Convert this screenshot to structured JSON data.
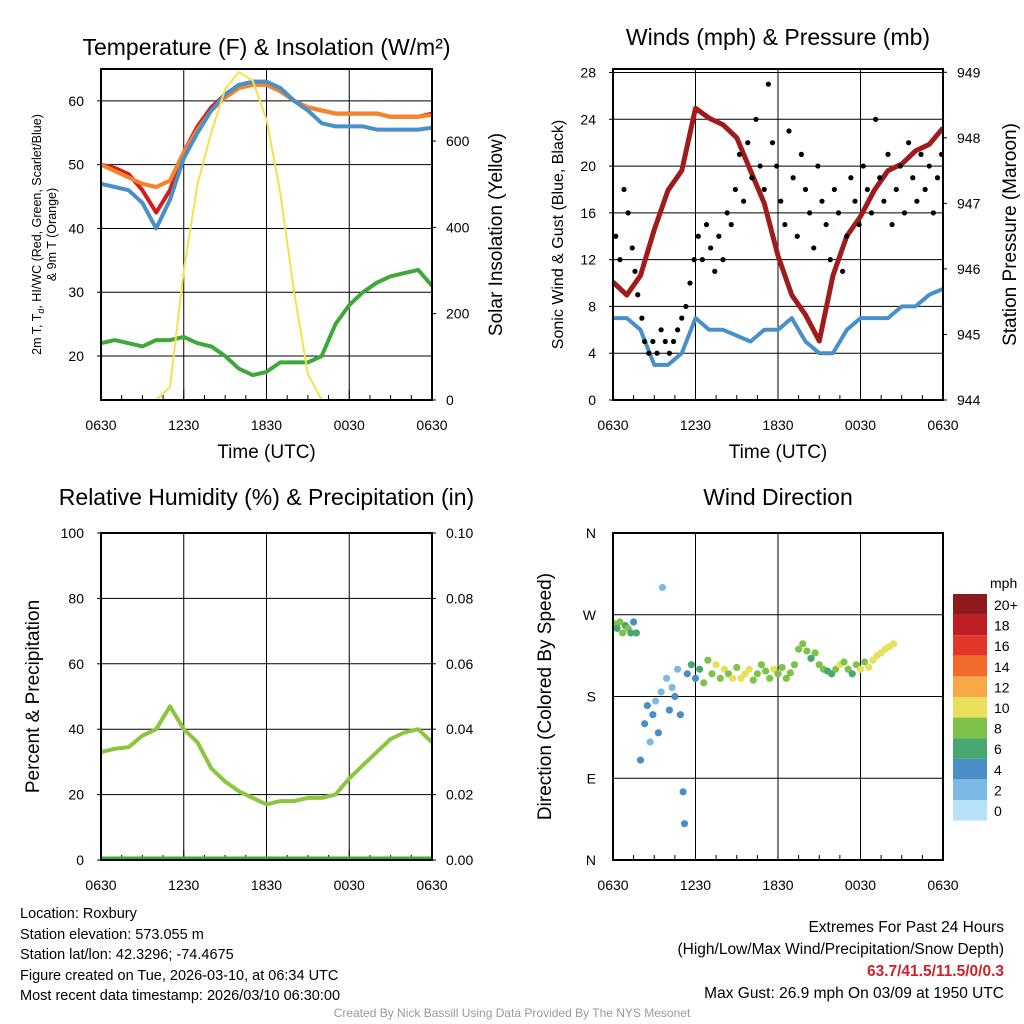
{
  "chart_data": [
    {
      "type": "line",
      "title": "Temperature (F) & Insolation (W/m²)",
      "xlabel": "Time (UTC)",
      "ylabel": "2m T, Td, HI/WC (Red, Green, Scarlet/Blue) & 9m T (Orange)",
      "ylabel_right": "Solar Insolation (Yellow)",
      "xticks": [
        "0630",
        "1230",
        "1830",
        "0030",
        "0630"
      ],
      "ylim": [
        13.1,
        65
      ],
      "yticks": [
        20,
        30,
        40,
        50,
        60
      ],
      "ylim_right": [
        0,
        767
      ],
      "yticks_right": [
        0,
        200,
        400,
        600
      ],
      "series": [
        {
          "name": "2m T",
          "color": "#d7191c",
          "axis": "left",
          "values": [
            50,
            49.5,
            48.5,
            46,
            42.5,
            46,
            52,
            56,
            59,
            61,
            62.5,
            63,
            63,
            62,
            60,
            59,
            58.5,
            58,
            58,
            58,
            58,
            57.5,
            57.5,
            57.5,
            58
          ]
        },
        {
          "name": "9m T",
          "color": "#f6822a",
          "axis": "left",
          "values": [
            50,
            49,
            48,
            47,
            46.5,
            47.5,
            52,
            55.5,
            58.5,
            60.5,
            62,
            62.5,
            62.5,
            61.5,
            60,
            59,
            58.5,
            58,
            58,
            58,
            58,
            57.5,
            57.5,
            57.5,
            57.8
          ]
        },
        {
          "name": "HI/WC",
          "color": "#4a90c8",
          "axis": "left",
          "values": [
            47,
            46.5,
            46,
            44,
            40,
            44.5,
            51,
            55,
            58.5,
            61,
            62.5,
            63,
            63,
            62,
            60,
            58.5,
            56.5,
            56,
            56,
            56,
            55.5,
            55.5,
            55.5,
            55.5,
            55.8
          ]
        },
        {
          "name": "Td",
          "color": "#3fa83a",
          "axis": "left",
          "values": [
            22,
            22.5,
            22,
            21.5,
            22.5,
            22.5,
            23,
            22,
            21.5,
            20,
            18,
            17,
            17.5,
            19,
            19,
            19,
            20,
            25,
            28,
            30,
            31.5,
            32.5,
            33,
            33.5,
            31
          ]
        },
        {
          "name": "Solar Insolation",
          "color": "#f9e04b",
          "axis": "right",
          "values": [
            0,
            0,
            0,
            0,
            0,
            30,
            300,
            500,
            620,
            720,
            760,
            740,
            650,
            480,
            250,
            60,
            0,
            0,
            0,
            0,
            0,
            0,
            0,
            0,
            0
          ]
        }
      ]
    },
    {
      "type": "line",
      "title": "Winds (mph) & Pressure (mb)",
      "xlabel": "Time (UTC)",
      "ylabel": "Sonic Wind & Gust (Blue, Black)",
      "ylabel_right": "Station Pressure (Maroon)",
      "xticks": [
        "0630",
        "1230",
        "1830",
        "0030",
        "0630"
      ],
      "ylim": [
        0,
        28.3
      ],
      "yticks": [
        0,
        4,
        8,
        12,
        16,
        20,
        24,
        28
      ],
      "ylim_right": [
        944,
        949.05
      ],
      "yticks_right": [
        944,
        945,
        946,
        947,
        948,
        949
      ],
      "series": [
        {
          "name": "Sonic Wind",
          "color": "#4a90c8",
          "axis": "left",
          "values": [
            7,
            7,
            6,
            3,
            3,
            4,
            7,
            6,
            6,
            5.5,
            5,
            6,
            6,
            7,
            5,
            4,
            4,
            6,
            7,
            7,
            7,
            8,
            8,
            9,
            9.5
          ]
        },
        {
          "name": "Station Pressure",
          "color": "#a01c1c",
          "axis": "right",
          "values": [
            945.8,
            945.6,
            945.9,
            946.6,
            947.2,
            947.5,
            948.45,
            948.3,
            948.2,
            948.0,
            947.5,
            947.0,
            946.2,
            945.6,
            945.3,
            944.9,
            945.9,
            946.5,
            946.8,
            947.2,
            947.5,
            947.6,
            947.8,
            947.9,
            948.15
          ]
        }
      ],
      "gusts": [
        [
          0.2,
          14
        ],
        [
          0.5,
          12
        ],
        [
          0.8,
          18
        ],
        [
          1.1,
          16
        ],
        [
          1.4,
          13
        ],
        [
          1.6,
          11
        ],
        [
          1.8,
          9
        ],
        [
          2.1,
          7
        ],
        [
          2.3,
          5
        ],
        [
          2.6,
          4
        ],
        [
          2.9,
          5
        ],
        [
          3.2,
          4
        ],
        [
          3.5,
          6
        ],
        [
          3.8,
          5
        ],
        [
          4.1,
          4
        ],
        [
          4.4,
          5
        ],
        [
          4.7,
          6
        ],
        [
          5.0,
          7
        ],
        [
          5.3,
          8
        ],
        [
          5.6,
          10
        ],
        [
          5.9,
          12
        ],
        [
          6.2,
          14
        ],
        [
          6.5,
          12
        ],
        [
          6.8,
          15
        ],
        [
          7.1,
          13
        ],
        [
          7.4,
          11
        ],
        [
          7.7,
          14
        ],
        [
          8.0,
          12
        ],
        [
          8.3,
          16
        ],
        [
          8.6,
          15
        ],
        [
          8.9,
          18
        ],
        [
          9.2,
          21
        ],
        [
          9.5,
          17
        ],
        [
          9.8,
          22
        ],
        [
          10.1,
          19
        ],
        [
          10.4,
          24
        ],
        [
          10.7,
          20
        ],
        [
          11.0,
          18
        ],
        [
          11.3,
          27
        ],
        [
          11.6,
          22
        ],
        [
          11.9,
          20
        ],
        [
          12.2,
          17
        ],
        [
          12.5,
          15
        ],
        [
          12.8,
          23
        ],
        [
          13.1,
          19
        ],
        [
          13.4,
          14
        ],
        [
          13.7,
          21
        ],
        [
          14.0,
          18
        ],
        [
          14.3,
          16
        ],
        [
          14.6,
          13
        ],
        [
          14.9,
          20
        ],
        [
          15.2,
          17
        ],
        [
          15.5,
          15
        ],
        [
          15.8,
          12
        ],
        [
          16.1,
          18
        ],
        [
          16.4,
          16
        ],
        [
          16.7,
          11
        ],
        [
          17.0,
          14
        ],
        [
          17.3,
          19
        ],
        [
          17.6,
          17
        ],
        [
          17.9,
          15
        ],
        [
          18.2,
          20
        ],
        [
          18.5,
          18
        ],
        [
          18.8,
          16
        ],
        [
          19.1,
          24
        ],
        [
          19.4,
          19
        ],
        [
          19.7,
          17
        ],
        [
          20.0,
          21
        ],
        [
          20.3,
          15
        ],
        [
          20.6,
          18
        ],
        [
          20.9,
          20
        ],
        [
          21.2,
          16
        ],
        [
          21.5,
          22
        ],
        [
          21.8,
          19
        ],
        [
          22.1,
          17
        ],
        [
          22.4,
          21
        ],
        [
          22.7,
          18
        ],
        [
          23.0,
          20
        ],
        [
          23.3,
          16
        ],
        [
          23.6,
          19
        ],
        [
          23.9,
          21
        ]
      ]
    },
    {
      "type": "line",
      "title": "Relative Humidity (%) & Precipitation (in)",
      "ylabel": "Percent & Precipitation",
      "xticks": [
        "0630",
        "1230",
        "1830",
        "0030",
        "0630"
      ],
      "ylim": [
        0,
        100
      ],
      "yticks": [
        0,
        20,
        40,
        60,
        80,
        100
      ],
      "ylim_right": [
        0,
        0.1
      ],
      "yticks_right": [
        "0.00",
        "0.02",
        "0.04",
        "0.06",
        "0.08",
        "0.10"
      ],
      "series": [
        {
          "name": "Relative Humidity",
          "color": "#8cc63f",
          "axis": "left",
          "values": [
            33,
            34,
            34.5,
            38,
            40,
            47,
            40,
            36,
            28,
            24,
            21,
            19,
            17,
            18,
            18,
            19,
            19,
            20,
            25,
            29,
            33,
            37,
            39,
            40,
            36
          ]
        },
        {
          "name": "Precipitation",
          "color": "#3fa83a",
          "axis": "right",
          "values": [
            0,
            0,
            0,
            0,
            0,
            0,
            0,
            0,
            0,
            0,
            0,
            0,
            0,
            0,
            0,
            0,
            0,
            0,
            0,
            0,
            0,
            0,
            0,
            0,
            0
          ]
        }
      ]
    },
    {
      "type": "scatter",
      "title": "Wind Direction",
      "ylabel": "Direction (Colored By Speed)",
      "xticks": [
        "0630",
        "1230",
        "1830",
        "0030",
        "0630"
      ],
      "yticks": [
        "N",
        "E",
        "S",
        "W",
        "N"
      ],
      "ylim": [
        0,
        360
      ],
      "legend": {
        "title": "mph",
        "labels": [
          "20+",
          "18",
          "16",
          "14",
          "12",
          "10",
          "8",
          "6",
          "4",
          "2",
          "0"
        ],
        "colors": [
          "#8f1a1d",
          "#bd1e24",
          "#e2362a",
          "#f26a2c",
          "#f9a848",
          "#e8e05a",
          "#7ec24a",
          "#46a86e",
          "#4a8ec6",
          "#7db9e5",
          "#b6e2f7"
        ]
      },
      "points": [
        [
          0.1,
          260,
          7
        ],
        [
          0.3,
          255,
          6
        ],
        [
          0.5,
          262,
          8
        ],
        [
          0.7,
          250,
          7
        ],
        [
          0.9,
          258,
          6
        ],
        [
          1.1,
          255,
          8
        ],
        [
          1.3,
          250,
          5
        ],
        [
          1.5,
          262,
          4
        ],
        [
          1.7,
          250,
          6
        ],
        [
          2.0,
          110,
          3
        ],
        [
          2.3,
          150,
          3
        ],
        [
          2.5,
          170,
          4
        ],
        [
          2.7,
          130,
          2
        ],
        [
          2.9,
          160,
          3
        ],
        [
          3.1,
          175,
          2
        ],
        [
          3.3,
          140,
          3
        ],
        [
          3.5,
          185,
          2
        ],
        [
          3.6,
          300,
          1
        ],
        [
          3.9,
          200,
          2
        ],
        [
          4.1,
          165,
          3
        ],
        [
          4.3,
          190,
          2
        ],
        [
          4.5,
          180,
          4
        ],
        [
          4.7,
          210,
          2
        ],
        [
          4.9,
          160,
          3
        ],
        [
          5.1,
          75,
          4
        ],
        [
          5.2,
          40,
          4
        ],
        [
          5.4,
          205,
          4
        ],
        [
          5.7,
          215,
          6
        ],
        [
          6.0,
          200,
          4
        ],
        [
          6.3,
          210,
          6
        ],
        [
          6.6,
          195,
          7
        ],
        [
          6.9,
          220,
          8
        ],
        [
          7.2,
          205,
          8
        ],
        [
          7.5,
          215,
          9
        ],
        [
          7.8,
          200,
          8
        ],
        [
          8.1,
          210,
          10
        ],
        [
          8.4,
          205,
          8
        ],
        [
          8.7,
          200,
          10
        ],
        [
          9.0,
          212,
          8
        ],
        [
          9.3,
          200,
          9
        ],
        [
          9.6,
          205,
          10
        ],
        [
          9.9,
          210,
          9
        ],
        [
          10.2,
          198,
          8
        ],
        [
          10.5,
          205,
          8
        ],
        [
          10.8,
          215,
          7
        ],
        [
          11.1,
          208,
          8
        ],
        [
          11.4,
          200,
          8
        ],
        [
          11.7,
          210,
          9
        ],
        [
          12.0,
          205,
          8
        ],
        [
          12.3,
          212,
          7
        ],
        [
          12.6,
          200,
          8
        ],
        [
          12.9,
          206,
          8
        ],
        [
          13.2,
          215,
          7
        ],
        [
          13.5,
          232,
          8
        ],
        [
          13.8,
          238,
          7
        ],
        [
          14.1,
          230,
          8
        ],
        [
          14.4,
          222,
          6
        ],
        [
          14.7,
          228,
          8
        ],
        [
          15.0,
          215,
          8
        ],
        [
          15.3,
          210,
          7
        ],
        [
          15.6,
          208,
          6
        ],
        [
          15.9,
          205,
          6
        ],
        [
          16.2,
          210,
          8
        ],
        [
          16.5,
          215,
          9
        ],
        [
          16.8,
          218,
          8
        ],
        [
          17.1,
          210,
          8
        ],
        [
          17.4,
          205,
          6
        ],
        [
          17.7,
          215,
          8
        ],
        [
          18.0,
          210,
          9
        ],
        [
          18.3,
          218,
          8
        ],
        [
          18.6,
          212,
          9
        ],
        [
          18.9,
          220,
          9
        ],
        [
          19.2,
          225,
          10
        ],
        [
          19.5,
          228,
          9
        ],
        [
          19.8,
          232,
          10
        ],
        [
          20.1,
          235,
          10
        ],
        [
          20.4,
          238,
          9
        ]
      ]
    }
  ],
  "footer": {
    "location": "Location: Roxbury",
    "elevation": "Station elevation: 573.055 m",
    "latlon": "Station lat/lon: 42.3296; -74.4675",
    "created": "Figure created on Tue, 2026-03-10, at 06:34 UTC",
    "recent": "Most recent data timestamp: 2026/03/10 06:30:00",
    "extremes_title": "Extremes For Past 24 Hours",
    "extremes_sub": "(High/Low/Max Wind/Precipitation/Snow Depth)",
    "extremes": "63.7/41.5/11.5/0/0.3",
    "max_gust": "Max Gust: 26.9 mph On 03/09 at 1950 UTC",
    "credit": "Created By Nick Bassill Using Data Provided By The NYS Mesonet"
  }
}
